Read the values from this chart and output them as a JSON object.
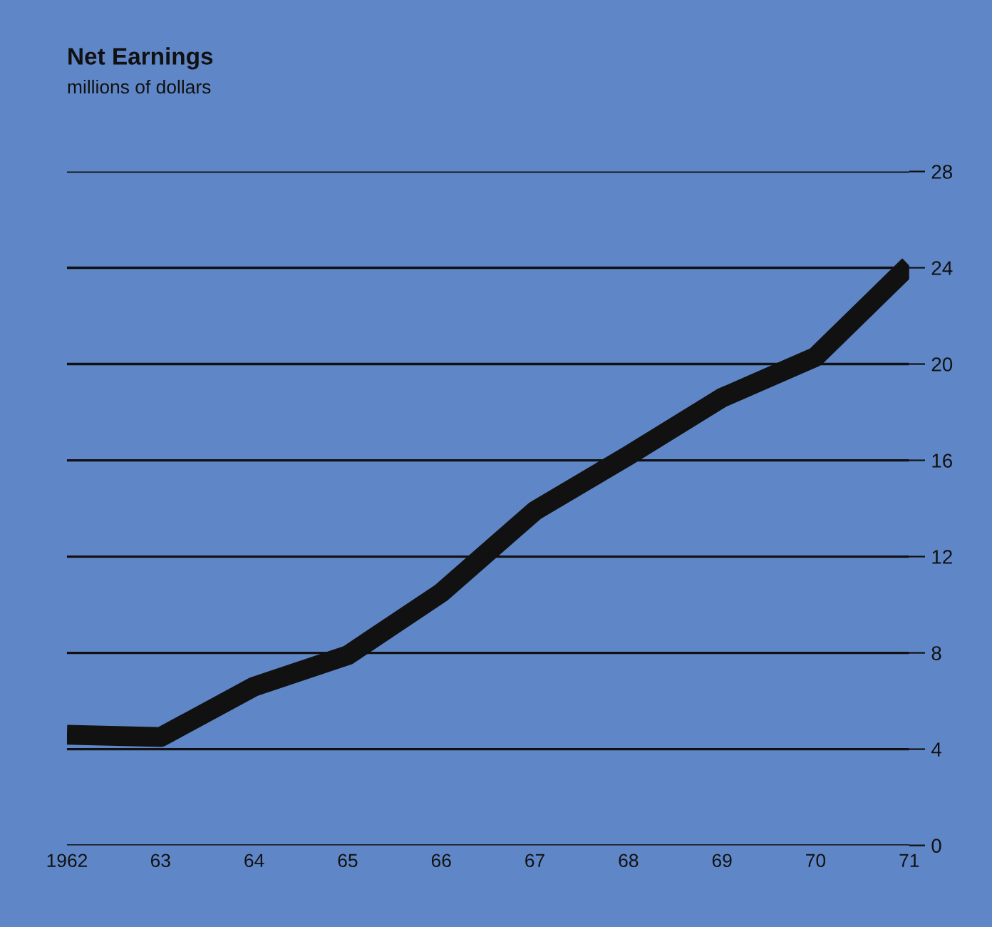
{
  "chart_data": {
    "type": "line",
    "title": "Net Earnings",
    "subtitle": "millions of dollars",
    "x": [
      1962,
      1963,
      1964,
      1965,
      1966,
      1967,
      1968,
      1969,
      1970,
      1971
    ],
    "series": [
      {
        "color": "#111111",
        "values": [
          4.6,
          4.5,
          6.6,
          7.9,
          10.5,
          13.9,
          16.2,
          18.6,
          20.3,
          24.1
        ]
      }
    ],
    "xlim": [
      1962,
      1971
    ],
    "xticks": [
      {
        "value": 1962,
        "label": "1962"
      },
      {
        "value": 1963,
        "label": "63"
      },
      {
        "value": 1964,
        "label": "64"
      },
      {
        "value": 1965,
        "label": "65"
      },
      {
        "value": 1966,
        "label": "66"
      },
      {
        "value": 1967,
        "label": "67"
      },
      {
        "value": 1968,
        "label": "68"
      },
      {
        "value": 1969,
        "label": "69"
      },
      {
        "value": 1970,
        "label": "70"
      },
      {
        "value": 1971,
        "label": "71"
      }
    ],
    "ylim": [
      0,
      28
    ],
    "yticks": [
      0,
      4,
      8,
      12,
      16,
      20,
      24,
      28
    ],
    "grid": "y",
    "marker": "none",
    "line_style": "solid"
  }
}
